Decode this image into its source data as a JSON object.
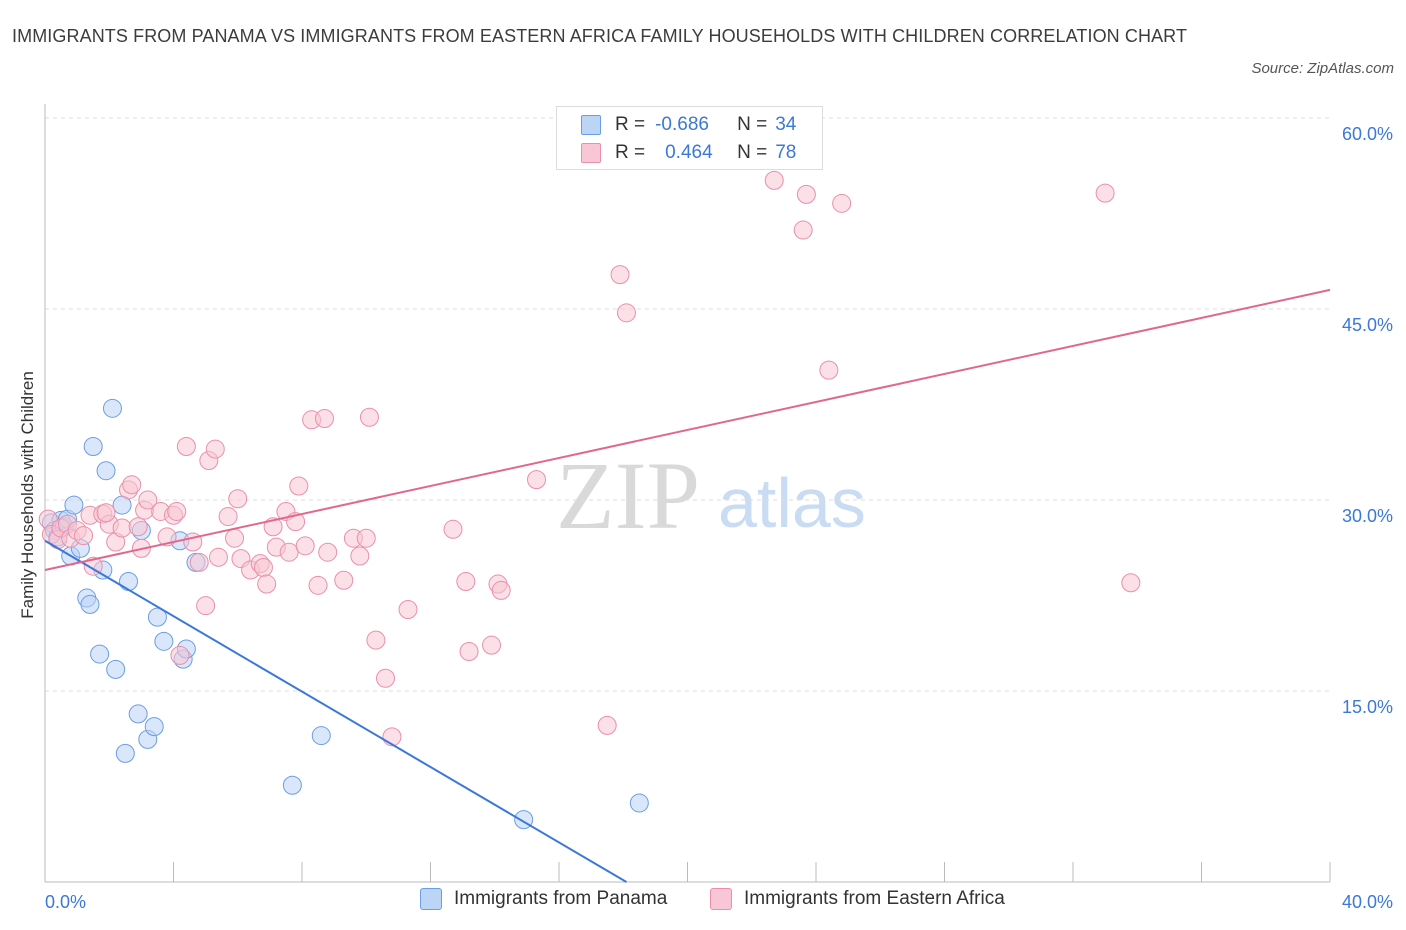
{
  "title": "IMMIGRANTS FROM PANAMA VS IMMIGRANTS FROM EASTERN AFRICA FAMILY HOUSEHOLDS WITH CHILDREN CORRELATION CHART",
  "source": "Source: ZipAtlas.com",
  "watermark": {
    "zip": "ZIP",
    "atlas": "atlas"
  },
  "colors": {
    "panama_fill": "#bcd4f6",
    "panama_stroke": "#6a9ee4",
    "panama_line": "#3b78d8",
    "eafrica_fill": "#f8c6d4",
    "eafrica_stroke": "#ea8fab",
    "eafrica_line": "#e06890",
    "axis_text": "#3b78d8",
    "grid": "#dddddd"
  },
  "legend_top": {
    "rows": [
      {
        "r_label": "R =",
        "r_value": "-0.686",
        "n_label": "N =",
        "n_value": "34"
      },
      {
        "r_label": "R =",
        "r_value": "0.464",
        "n_label": "N =",
        "n_value": "78"
      }
    ]
  },
  "legend_bottom": {
    "items": [
      {
        "label": "Immigrants from Panama"
      },
      {
        "label": "Immigrants from Eastern Africa"
      }
    ]
  },
  "chart_data": {
    "type": "scatter",
    "xlabel": "",
    "ylabel": "Family Households with Children",
    "xlim": [
      0,
      40
    ],
    "ylim": [
      0,
      60
    ],
    "x_tick_labels": [
      "0.0%",
      "40.0%"
    ],
    "y_tick_labels": [
      "15.0%",
      "30.0%",
      "45.0%",
      "60.0%"
    ],
    "y_ticks": [
      15,
      30,
      45,
      60
    ],
    "x_minor_ticks": [
      4,
      8,
      12,
      16,
      20,
      24,
      28,
      32,
      36,
      40
    ],
    "series": [
      {
        "name": "Immigrants from Panama",
        "trendline": {
          "x": [
            0,
            18.1
          ],
          "y": [
            26.8,
            0
          ]
        },
        "points": [
          [
            0.2,
            28.2
          ],
          [
            0.3,
            27.6
          ],
          [
            0.4,
            27.1
          ],
          [
            0.5,
            28.4
          ],
          [
            0.6,
            27.9
          ],
          [
            0.7,
            28.5
          ],
          [
            0.8,
            25.6
          ],
          [
            0.9,
            29.6
          ],
          [
            1.1,
            26.2
          ],
          [
            1.3,
            22.3
          ],
          [
            1.4,
            21.8
          ],
          [
            1.5,
            34.2
          ],
          [
            1.7,
            17.9
          ],
          [
            1.8,
            24.5
          ],
          [
            1.9,
            32.3
          ],
          [
            2.1,
            37.2
          ],
          [
            2.2,
            16.7
          ],
          [
            2.4,
            29.6
          ],
          [
            2.5,
            10.1
          ],
          [
            2.6,
            23.6
          ],
          [
            2.9,
            13.2
          ],
          [
            3.0,
            27.6
          ],
          [
            3.2,
            11.2
          ],
          [
            3.4,
            12.2
          ],
          [
            3.5,
            20.8
          ],
          [
            3.7,
            18.9
          ],
          [
            4.2,
            26.8
          ],
          [
            4.3,
            17.5
          ],
          [
            4.4,
            18.3
          ],
          [
            4.7,
            25.1
          ],
          [
            7.7,
            7.6
          ],
          [
            8.6,
            11.5
          ],
          [
            14.9,
            4.9
          ],
          [
            18.5,
            6.2
          ]
        ]
      },
      {
        "name": "Immigrants from Eastern Africa",
        "trendline": {
          "x": [
            0,
            40
          ],
          "y": [
            24.5,
            46.5
          ]
        },
        "points": [
          [
            0.1,
            28.5
          ],
          [
            0.2,
            27.3
          ],
          [
            0.4,
            26.9
          ],
          [
            0.5,
            27.8
          ],
          [
            0.7,
            28.1
          ],
          [
            0.8,
            27.0
          ],
          [
            1.0,
            27.6
          ],
          [
            1.2,
            27.2
          ],
          [
            1.4,
            28.8
          ],
          [
            1.5,
            24.8
          ],
          [
            1.8,
            28.9
          ],
          [
            2.0,
            28.1
          ],
          [
            2.2,
            26.7
          ],
          [
            2.4,
            27.8
          ],
          [
            2.6,
            30.8
          ],
          [
            2.7,
            31.2
          ],
          [
            3.0,
            26.2
          ],
          [
            3.1,
            29.2
          ],
          [
            3.2,
            30.0
          ],
          [
            3.6,
            29.1
          ],
          [
            3.8,
            27.1
          ],
          [
            4.0,
            28.8
          ],
          [
            4.1,
            29.1
          ],
          [
            4.2,
            17.8
          ],
          [
            4.4,
            34.2
          ],
          [
            4.6,
            26.7
          ],
          [
            4.8,
            25.1
          ],
          [
            5.0,
            21.7
          ],
          [
            5.1,
            33.1
          ],
          [
            5.3,
            34.0
          ],
          [
            5.4,
            25.5
          ],
          [
            5.7,
            28.7
          ],
          [
            5.9,
            27.0
          ],
          [
            6.0,
            30.1
          ],
          [
            6.1,
            25.4
          ],
          [
            6.4,
            24.5
          ],
          [
            6.7,
            25.0
          ],
          [
            6.8,
            24.7
          ],
          [
            6.9,
            23.4
          ],
          [
            7.1,
            27.9
          ],
          [
            7.2,
            26.3
          ],
          [
            7.5,
            29.1
          ],
          [
            7.6,
            25.9
          ],
          [
            7.8,
            28.3
          ],
          [
            7.9,
            31.1
          ],
          [
            8.1,
            26.4
          ],
          [
            8.3,
            36.3
          ],
          [
            8.5,
            23.3
          ],
          [
            8.7,
            36.4
          ],
          [
            8.8,
            25.9
          ],
          [
            9.3,
            23.7
          ],
          [
            9.6,
            27.0
          ],
          [
            9.8,
            25.6
          ],
          [
            10.0,
            27.0
          ],
          [
            10.1,
            36.5
          ],
          [
            10.3,
            19.0
          ],
          [
            10.6,
            16.0
          ],
          [
            10.8,
            11.4
          ],
          [
            11.3,
            21.4
          ],
          [
            12.7,
            27.7
          ],
          [
            13.1,
            23.6
          ],
          [
            13.2,
            18.1
          ],
          [
            13.9,
            18.6
          ],
          [
            14.1,
            23.4
          ],
          [
            14.2,
            22.9
          ],
          [
            15.3,
            31.6
          ],
          [
            17.5,
            12.3
          ],
          [
            17.9,
            47.7
          ],
          [
            18.1,
            44.7
          ],
          [
            22.7,
            55.1
          ],
          [
            23.6,
            51.2
          ],
          [
            23.7,
            54.0
          ],
          [
            24.4,
            40.2
          ],
          [
            24.8,
            53.3
          ],
          [
            33.0,
            54.1
          ],
          [
            33.8,
            23.5
          ],
          [
            2.9,
            27.9
          ],
          [
            1.9,
            29.0
          ]
        ]
      }
    ]
  }
}
